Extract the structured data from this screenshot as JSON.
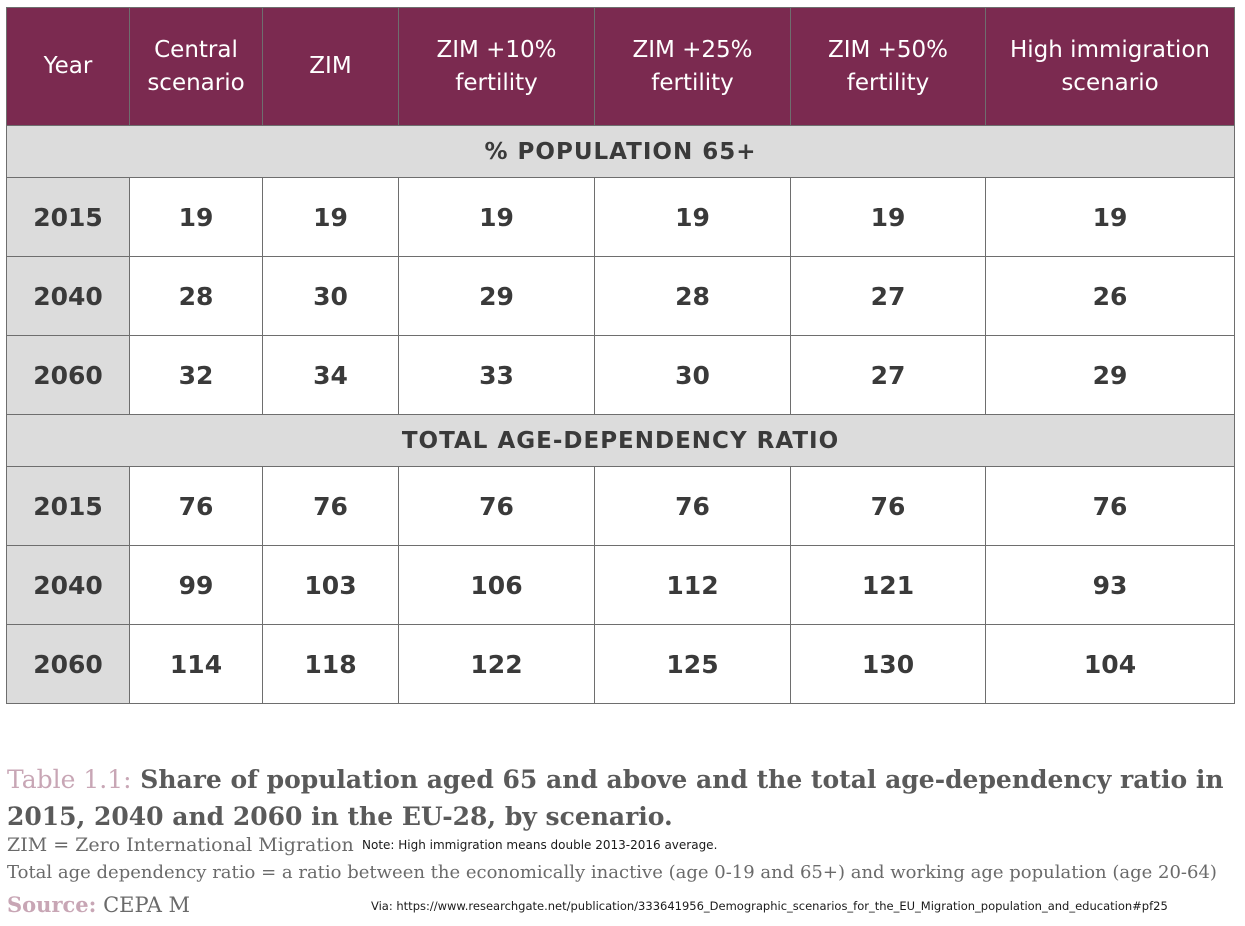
{
  "chart_data": {
    "type": "table",
    "columns": [
      "Year",
      "Central scenario",
      "ZIM",
      "ZIM +10% fertility",
      "ZIM +25% fertility",
      "ZIM +50% fertility",
      "High immigration scenario"
    ],
    "column_lines": [
      [
        "Year"
      ],
      [
        "Central",
        "scenario"
      ],
      [
        "ZIM"
      ],
      [
        "ZIM +10%",
        "fertility"
      ],
      [
        "ZIM +25%",
        "fertility"
      ],
      [
        "ZIM +50%",
        "fertility"
      ],
      [
        "High immigration",
        "scenario"
      ]
    ],
    "sections": [
      {
        "title": "% POPULATION 65+",
        "rows": [
          {
            "year": "2015",
            "values": [
              19,
              19,
              19,
              19,
              19,
              19
            ]
          },
          {
            "year": "2040",
            "values": [
              28,
              30,
              29,
              28,
              27,
              26
            ]
          },
          {
            "year": "2060",
            "values": [
              32,
              34,
              33,
              30,
              27,
              29
            ]
          }
        ]
      },
      {
        "title": "TOTAL AGE-DEPENDENCY RATIO",
        "rows": [
          {
            "year": "2015",
            "values": [
              76,
              76,
              76,
              76,
              76,
              76
            ]
          },
          {
            "year": "2040",
            "values": [
              99,
              103,
              106,
              112,
              121,
              93
            ]
          },
          {
            "year": "2060",
            "values": [
              114,
              118,
              122,
              125,
              130,
              104
            ]
          }
        ]
      }
    ]
  },
  "colors": {
    "header_bg": "#7b2a50",
    "header_text": "#ffffff",
    "section_bg": "#dcdcdc",
    "caption_accent": "#c8a6b5"
  },
  "caption": {
    "prefix": "Table 1.1:",
    "text": "Share of population aged 65 and above and the total age-dependency ratio in 2015, 2040 and 2060 in the EU-28, by scenario."
  },
  "footnotes": {
    "zim": "ZIM = Zero International Migration",
    "note": "Note: High immigration means double 2013-2016 average.",
    "ratio": "Total age dependency ratio = a ratio between the economically inactive (age 0-19 and 65+) and working age population (age 20-64)",
    "source_label": "Source:",
    "source_value": "CEPA M",
    "via": "Via: https://www.researchgate.net/publication/333641956_Demographic_scenarios_for_the_EU_Migration_population_and_education#pf25"
  }
}
